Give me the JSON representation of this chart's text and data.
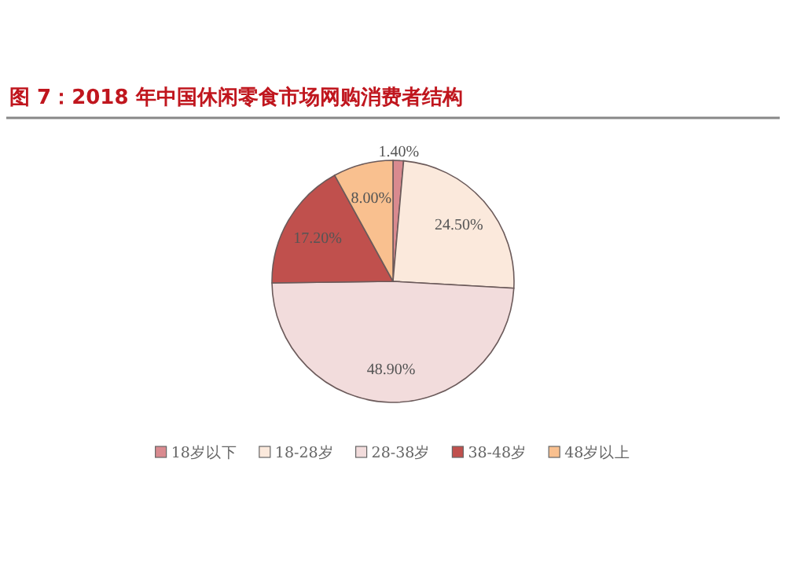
{
  "chart_data": {
    "type": "pie",
    "title": "图  7：2018 年中国休闲零食市场网购消费者结构",
    "categories": [
      "18岁以下",
      "18-28岁",
      "28-38岁",
      "38-48岁",
      "48岁以上"
    ],
    "values": [
      1.4,
      24.5,
      48.9,
      17.2,
      8.0
    ],
    "value_labels": [
      "1.40%",
      "24.50%",
      "48.90%",
      "17.20%",
      "8.00%"
    ],
    "colors": [
      "#d98a8f",
      "#fbe9dc",
      "#f2dcdc",
      "#c0504d",
      "#f9c08f"
    ],
    "legend": "bottom"
  }
}
